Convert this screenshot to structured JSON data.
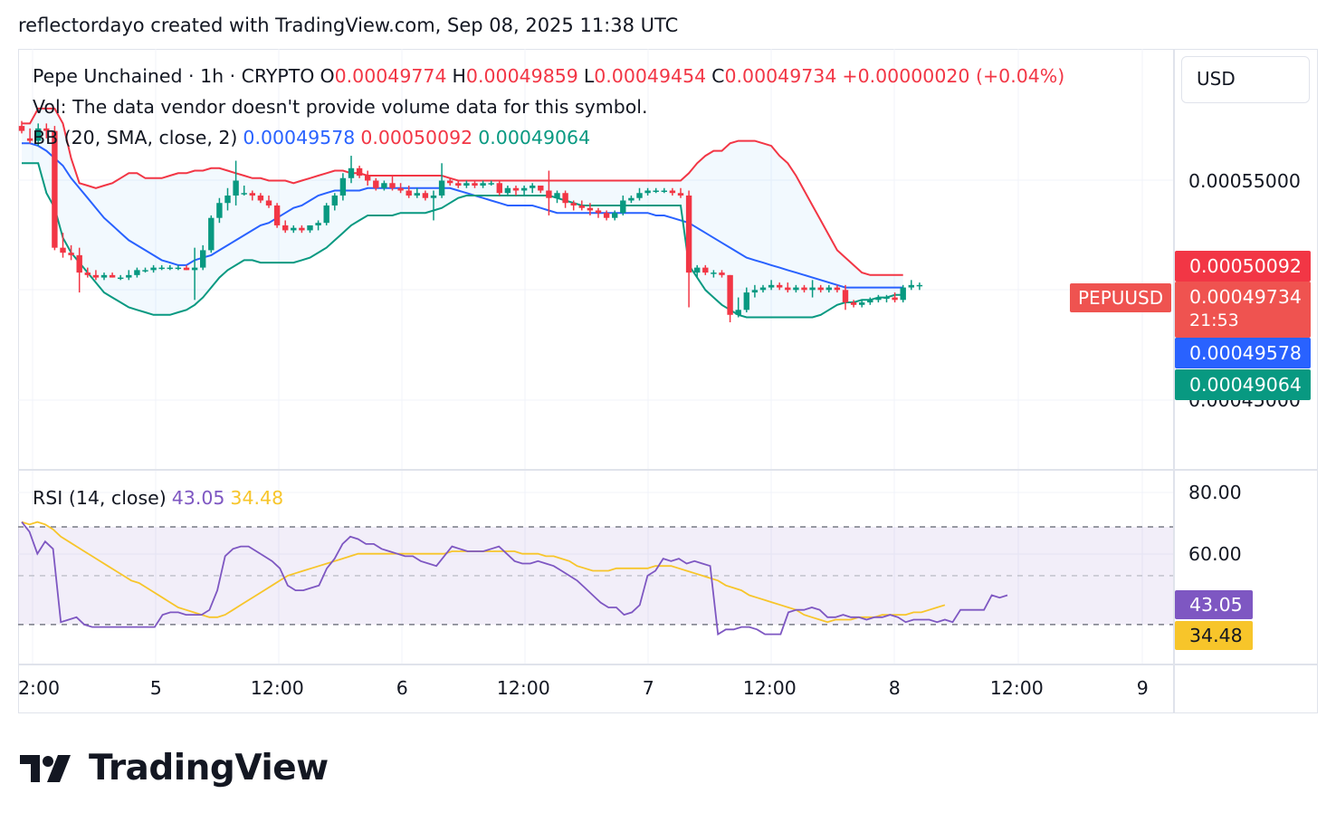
{
  "header": {
    "text": "reflectordayo created with TradingView.com, Sep 08, 2025 11:38 UTC"
  },
  "legend": {
    "symbol": "Pepe Unchained · 1h · CRYPTO",
    "o_label": "O",
    "o": "0.00049774",
    "h_label": "H",
    "h": "0.00049859",
    "l_label": "L",
    "l": "0.00049454",
    "c_label": "C",
    "c": "0.00049734",
    "change": "+0.00000020 (+0.04%)",
    "vol": "Vol: The data vendor doesn't provide volume data for this symbol.",
    "bb_label": "BB (20, SMA, close, 2)",
    "bb_basis": "0.00049578",
    "bb_upper": "0.00050092",
    "bb_lower": "0.00049064",
    "rsi_label": "RSI (14, close)",
    "rsi": "43.05",
    "rsi_ma": "34.48"
  },
  "currency": "USD",
  "symbol_tag": "PEPUUSD",
  "price_axis": {
    "labels": [
      "0.00055000",
      "0.00045000"
    ],
    "tag_upper": "0.00050092",
    "tag_close": "0.00049734",
    "tag_countdown": "21:53",
    "tag_basis": "0.00049578",
    "tag_lower": "0.00049064"
  },
  "rsi_axis": {
    "labels": [
      "80.00",
      "60.00"
    ],
    "tag_rsi": "43.05",
    "tag_ma": "34.48"
  },
  "time_axis": [
    "2:00",
    "5",
    "12:00",
    "6",
    "12:00",
    "7",
    "12:00",
    "8",
    "12:00",
    "9"
  ],
  "colors": {
    "up": "#089981",
    "down": "#f23645",
    "bb_basis": "#2962ff",
    "bb_upper": "#f23645",
    "bb_lower": "#089981",
    "rsi": "#7e57c2",
    "rsi_ma": "#f7c52a"
  },
  "logo": {
    "text": "TradingView"
  },
  "chart_data": {
    "type": "candlestick",
    "ylim": [
      0.000423,
      0.000592
    ],
    "candles": [
      [
        0.000561,
        0.000563,
        0.000558,
        0.000559
      ],
      [
        0.000556,
        0.00056,
        0.000554,
        0.000555
      ],
      [
        0.000555,
        0.000562,
        0.000553,
        0.00056
      ],
      [
        0.00056,
        0.000562,
        0.000556,
        0.000559
      ],
      [
        0.000559,
        0.000561,
        0.000511,
        0.000512
      ],
      [
        0.000512,
        0.000518,
        0.000508,
        0.00051
      ],
      [
        0.00051,
        0.000513,
        0.000507,
        0.000509
      ],
      [
        0.000509,
        0.000512,
        0.000494,
        0.000502
      ],
      [
        0.000502,
        0.000504,
        0.0005,
        0.000501
      ],
      [
        0.000501,
        0.000503,
        0.000499,
        0.0005
      ],
      [
        0.0005,
        0.000502,
        0.000499,
        0.000501
      ],
      [
        0.000501,
        0.000502,
        0.0005,
        0.0005
      ],
      [
        0.0005,
        0.000501,
        0.000499,
        0.0005
      ],
      [
        0.0005,
        0.000503,
        0.000499,
        0.000501
      ],
      [
        0.000501,
        0.000504,
        0.0005,
        0.000503
      ],
      [
        0.000503,
        0.000504,
        0.000502,
        0.000503
      ],
      [
        0.000503,
        0.000505,
        0.000502,
        0.000504
      ],
      [
        0.000504,
        0.000505,
        0.000503,
        0.000504
      ],
      [
        0.000504,
        0.000505,
        0.000503,
        0.000504
      ],
      [
        0.000504,
        0.000505,
        0.000503,
        0.000504
      ],
      [
        0.000504,
        0.000505,
        0.000503,
        0.000503
      ],
      [
        0.000503,
        0.000512,
        0.000491,
        0.000504
      ],
      [
        0.000504,
        0.000513,
        0.000503,
        0.000511
      ],
      [
        0.000511,
        0.000525,
        0.00051,
        0.000524
      ],
      [
        0.000524,
        0.000532,
        0.000522,
        0.00053
      ],
      [
        0.00053,
        0.000536,
        0.000527,
        0.000533
      ],
      [
        0.000533,
        0.000547,
        0.000529,
        0.000539
      ],
      [
        0.000534,
        0.000537,
        0.000533,
        0.000534
      ],
      [
        0.000534,
        0.000535,
        0.000531,
        0.000533
      ],
      [
        0.000533,
        0.000534,
        0.00053,
        0.000531
      ],
      [
        0.000531,
        0.000533,
        0.000528,
        0.000529
      ],
      [
        0.000529,
        0.00053,
        0.00052,
        0.000521
      ],
      [
        0.000521,
        0.000523,
        0.000518,
        0.000519
      ],
      [
        0.000519,
        0.000521,
        0.000518,
        0.00052
      ],
      [
        0.00052,
        0.000521,
        0.000518,
        0.000519
      ],
      [
        0.000519,
        0.000521,
        0.000518,
        0.000521
      ],
      [
        0.000521,
        0.000523,
        0.000519,
        0.000522
      ],
      [
        0.000522,
        0.00053,
        0.000521,
        0.000529
      ],
      [
        0.000529,
        0.000534,
        0.000527,
        0.000533
      ],
      [
        0.000533,
        0.000542,
        0.000531,
        0.00054
      ],
      [
        0.00054,
        0.000549,
        0.000538,
        0.000544
      ],
      [
        0.000544,
        0.000545,
        0.00054,
        0.000541
      ],
      [
        0.000541,
        0.000543,
        0.000537,
        0.000539
      ],
      [
        0.000539,
        0.00054,
        0.000535,
        0.000536
      ],
      [
        0.000536,
        0.000539,
        0.000535,
        0.000538
      ],
      [
        0.000538,
        0.000541,
        0.000535,
        0.000536
      ],
      [
        0.000536,
        0.000538,
        0.000534,
        0.000535
      ],
      [
        0.000535,
        0.000537,
        0.000532,
        0.000533
      ],
      [
        0.000533,
        0.000536,
        0.000532,
        0.000534
      ],
      [
        0.000534,
        0.000535,
        0.000531,
        0.000532
      ],
      [
        0.000532,
        0.000535,
        0.000523,
        0.000533
      ],
      [
        0.000533,
        0.000546,
        0.000532,
        0.000539
      ],
      [
        0.000539,
        0.00054,
        0.000537,
        0.000538
      ],
      [
        0.000538,
        0.000539,
        0.000536,
        0.000537
      ],
      [
        0.000537,
        0.000539,
        0.000536,
        0.000538
      ],
      [
        0.000538,
        0.000539,
        0.000536,
        0.000537
      ],
      [
        0.000537,
        0.000539,
        0.000536,
        0.000538
      ],
      [
        0.000538,
        0.000539,
        0.000537,
        0.000538
      ],
      [
        0.000538,
        0.000539,
        0.000533,
        0.000534
      ],
      [
        0.000534,
        0.000537,
        0.000533,
        0.000536
      ],
      [
        0.000536,
        0.000537,
        0.000533,
        0.000535
      ],
      [
        0.000535,
        0.000537,
        0.000533,
        0.000536
      ],
      [
        0.000536,
        0.000538,
        0.000534,
        0.000537
      ],
      [
        0.000537,
        0.000537,
        0.000534,
        0.000535
      ],
      [
        0.000535,
        0.000543,
        0.000525,
        0.000532
      ],
      [
        0.000532,
        0.000535,
        0.00053,
        0.000534
      ],
      [
        0.000534,
        0.000535,
        0.000528,
        0.00053
      ],
      [
        0.00053,
        0.000531,
        0.000527,
        0.000529
      ],
      [
        0.000529,
        0.000531,
        0.000527,
        0.000528
      ],
      [
        0.000528,
        0.00053,
        0.000525,
        0.000527
      ],
      [
        0.000527,
        0.000528,
        0.000524,
        0.000526
      ],
      [
        0.000526,
        0.000527,
        0.000523,
        0.000524
      ],
      [
        0.000524,
        0.000527,
        0.000523,
        0.000526
      ],
      [
        0.000526,
        0.000533,
        0.000525,
        0.000531
      ],
      [
        0.000531,
        0.000533,
        0.00053,
        0.000532
      ],
      [
        0.000532,
        0.000536,
        0.000531,
        0.000534
      ],
      [
        0.000534,
        0.000536,
        0.000533,
        0.000535
      ],
      [
        0.000535,
        0.000536,
        0.000534,
        0.000535
      ],
      [
        0.000535,
        0.000536,
        0.000534,
        0.000535
      ],
      [
        0.000535,
        0.000536,
        0.000533,
        0.000534
      ],
      [
        0.000534,
        0.000536,
        0.000532,
        0.000533
      ],
      [
        0.000533,
        0.000535,
        0.000488,
        0.000502
      ],
      [
        0.000502,
        0.000505,
        0.0005,
        0.000504
      ],
      [
        0.000504,
        0.000505,
        0.000501,
        0.000502
      ],
      [
        0.000502,
        0.000503,
        0.0005,
        0.000502
      ],
      [
        0.000502,
        0.000503,
        0.0005,
        0.000501
      ],
      [
        0.000501,
        0.000501,
        0.000482,
        0.000485
      ],
      [
        0.000485,
        0.000492,
        0.000484,
        0.000487
      ],
      [
        0.000487,
        0.000496,
        0.000486,
        0.000494
      ],
      [
        0.000494,
        0.000497,
        0.000492,
        0.000495
      ],
      [
        0.000495,
        0.000497,
        0.000494,
        0.000496
      ],
      [
        0.000496,
        0.000499,
        0.000495,
        0.000497
      ],
      [
        0.000497,
        0.000498,
        0.000495,
        0.000496
      ],
      [
        0.000496,
        0.000498,
        0.000494,
        0.000495
      ],
      [
        0.000495,
        0.000497,
        0.000494,
        0.000496
      ],
      [
        0.000496,
        0.000497,
        0.000494,
        0.000495
      ],
      [
        0.000495,
        0.000499,
        0.000492,
        0.000496
      ],
      [
        0.000496,
        0.000497,
        0.000494,
        0.000495
      ],
      [
        0.000495,
        0.000497,
        0.000494,
        0.000496
      ],
      [
        0.000496,
        0.000497,
        0.000494,
        0.000495
      ],
      [
        0.000495,
        0.000497,
        0.000487,
        0.00049
      ],
      [
        0.00049,
        0.000491,
        0.000488,
        0.000489
      ],
      [
        0.000489,
        0.000491,
        0.000488,
        0.00049
      ],
      [
        0.00049,
        0.000492,
        0.000489,
        0.000491
      ],
      [
        0.000491,
        0.000493,
        0.00049,
        0.000492
      ],
      [
        0.000492,
        0.000493,
        0.00049,
        0.000492
      ],
      [
        0.000492,
        0.000494,
        0.00049,
        0.000491
      ],
      [
        0.000491,
        0.000497,
        0.00049,
        0.000496
      ],
      [
        0.000496,
        0.000499,
        0.000495,
        0.000497
      ],
      [
        0.000497,
        0.000498,
        0.000495,
        0.000497
      ]
    ],
    "bb_upper": [
      0.000562,
      0.000562,
      0.000568,
      0.000568,
      0.000568,
      0.000562,
      0.000548,
      0.000538,
      0.000537,
      0.000536,
      0.000537,
      0.000538,
      0.00054,
      0.000542,
      0.000542,
      0.00054,
      0.00054,
      0.00054,
      0.000541,
      0.000542,
      0.000542,
      0.000543,
      0.000543,
      0.000544,
      0.000544,
      0.000543,
      0.000542,
      0.000541,
      0.00054,
      0.00054,
      0.000539,
      0.000539,
      0.000539,
      0.000538,
      0.000539,
      0.00054,
      0.000541,
      0.000542,
      0.000543,
      0.000543,
      0.000542,
      0.000542,
      0.000541,
      0.000541,
      0.000541,
      0.000541,
      0.000541,
      0.000541,
      0.000541,
      0.000541,
      0.000541,
      0.000541,
      0.00054,
      0.000539,
      0.000539,
      0.000539,
      0.000539,
      0.000539,
      0.000539,
      0.000539,
      0.000539,
      0.000539,
      0.000539,
      0.000539,
      0.000539,
      0.000539,
      0.000539,
      0.000539,
      0.000539,
      0.000539,
      0.000539,
      0.000539,
      0.000539,
      0.000539,
      0.000539,
      0.000539,
      0.000539,
      0.000539,
      0.000539,
      0.000539,
      0.000539,
      0.000542,
      0.000546,
      0.000549,
      0.000551,
      0.000551,
      0.000554,
      0.000555,
      0.000555,
      0.000555,
      0.000554,
      0.000553,
      0.000549,
      0.000546,
      0.000541,
      0.000535,
      0.000529,
      0.000523,
      0.000517,
      0.000511,
      0.000508,
      0.000505,
      0.000502,
      0.000501,
      0.000501,
      0.000501,
      0.000501,
      0.000501
    ],
    "bb_basis": [
      0.000554,
      0.000554,
      0.000553,
      0.000551,
      0.000548,
      0.000545,
      0.00054,
      0.000536,
      0.000532,
      0.000528,
      0.000524,
      0.000521,
      0.000518,
      0.000515,
      0.000513,
      0.000511,
      0.000509,
      0.000507,
      0.000506,
      0.000505,
      0.000505,
      0.000507,
      0.000508,
      0.000509,
      0.000511,
      0.000513,
      0.000515,
      0.000517,
      0.000519,
      0.000521,
      0.000522,
      0.000524,
      0.000526,
      0.000528,
      0.000529,
      0.000531,
      0.000533,
      0.000534,
      0.000535,
      0.000535,
      0.000535,
      0.000535,
      0.000536,
      0.000536,
      0.000536,
      0.000536,
      0.000536,
      0.000536,
      0.000536,
      0.000536,
      0.000536,
      0.000536,
      0.000536,
      0.000535,
      0.000534,
      0.000533,
      0.000532,
      0.000531,
      0.00053,
      0.000529,
      0.000529,
      0.000529,
      0.000529,
      0.000528,
      0.000527,
      0.000526,
      0.000526,
      0.000526,
      0.000526,
      0.000526,
      0.000526,
      0.000526,
      0.000526,
      0.000526,
      0.000526,
      0.000526,
      0.000526,
      0.000525,
      0.000525,
      0.000524,
      0.000523,
      0.000522,
      0.00052,
      0.000518,
      0.000516,
      0.000514,
      0.000512,
      0.00051,
      0.000508,
      0.000507,
      0.000506,
      0.000505,
      0.000504,
      0.000503,
      0.000502,
      0.000501,
      0.0005,
      0.000499,
      0.000498,
      0.000497,
      0.000496,
      0.000496,
      0.000496,
      0.000496,
      0.000496,
      0.000496,
      0.000496,
      0.000496
    ],
    "bb_lower": [
      0.000546,
      0.000546,
      0.000546,
      0.000534,
      0.000528,
      0.000516,
      0.00051,
      0.000506,
      0.000502,
      0.000498,
      0.000494,
      0.000492,
      0.00049,
      0.000488,
      0.000487,
      0.000486,
      0.000485,
      0.000485,
      0.000485,
      0.000486,
      0.000487,
      0.000489,
      0.000492,
      0.000496,
      0.0005,
      0.000503,
      0.000505,
      0.000507,
      0.000507,
      0.000506,
      0.000506,
      0.000506,
      0.000506,
      0.000506,
      0.000507,
      0.000508,
      0.00051,
      0.000512,
      0.000515,
      0.000518,
      0.000521,
      0.000523,
      0.000525,
      0.000525,
      0.000525,
      0.000525,
      0.000526,
      0.000526,
      0.000526,
      0.000526,
      0.000527,
      0.000528,
      0.00053,
      0.000532,
      0.000533,
      0.000533,
      0.000533,
      0.000533,
      0.000533,
      0.000533,
      0.000533,
      0.000533,
      0.000533,
      0.000533,
      0.000533,
      0.000532,
      0.000531,
      0.00053,
      0.000529,
      0.000529,
      0.000529,
      0.000529,
      0.000529,
      0.000529,
      0.000529,
      0.000529,
      0.000529,
      0.000529,
      0.000529,
      0.000529,
      0.000529,
      0.000505,
      0.0005,
      0.000495,
      0.000492,
      0.000489,
      0.000487,
      0.000485,
      0.000484,
      0.000484,
      0.000484,
      0.000484,
      0.000484,
      0.000484,
      0.000484,
      0.000484,
      0.000484,
      0.000485,
      0.000487,
      0.000489,
      0.00049,
      0.00049,
      0.000491,
      0.000491,
      0.000492,
      0.000492,
      0.000493,
      0.000493
    ],
    "rsi_ylim": [
      14,
      93
    ],
    "rsi": [
      72,
      68,
      59,
      64,
      61,
      31,
      32,
      33,
      30,
      29,
      29,
      29,
      29,
      29,
      29,
      29,
      29,
      29,
      34,
      35,
      35,
      34,
      34,
      34,
      36,
      44,
      58,
      61,
      62,
      62,
      60,
      58,
      56,
      53,
      46,
      44,
      44,
      45,
      46,
      53,
      57,
      63,
      66,
      65,
      63,
      63,
      61,
      60,
      59,
      58,
      58,
      56,
      55,
      54,
      58,
      62,
      61,
      60,
      60,
      60,
      61,
      62,
      59,
      56,
      55,
      55,
      56,
      55,
      54,
      52,
      50,
      48,
      45,
      42,
      39,
      37,
      37,
      34,
      35,
      38,
      50,
      52,
      57,
      56,
      57,
      55,
      56,
      55,
      54,
      26,
      28,
      28,
      29,
      29,
      28,
      26,
      26,
      26,
      35,
      36,
      36,
      37,
      36,
      33,
      33,
      34,
      33,
      33,
      32,
      33,
      33,
      34,
      33,
      31,
      32,
      32,
      32,
      31,
      32,
      31,
      36,
      36,
      36,
      36,
      42,
      41,
      42
    ],
    "rsi_ma": [
      72,
      71,
      72,
      71,
      69,
      66,
      64,
      62,
      60,
      58,
      56,
      54,
      52,
      50,
      48,
      47,
      45,
      43,
      41,
      39,
      37,
      36,
      35,
      34,
      33,
      33,
      34,
      36,
      38,
      40,
      42,
      44,
      46,
      48,
      50,
      51,
      52,
      53,
      54,
      55,
      56,
      57,
      58,
      59,
      59,
      59,
      59,
      59,
      59,
      59,
      59,
      59,
      59,
      59,
      59,
      60,
      60,
      60,
      60,
      60,
      60,
      60,
      60,
      60,
      59,
      59,
      59,
      58,
      58,
      57,
      56,
      54,
      53,
      52,
      52,
      52,
      53,
      53,
      53,
      53,
      53,
      54,
      54,
      54,
      53,
      52,
      51,
      50,
      49,
      48,
      46,
      45,
      44,
      42,
      41,
      40,
      39,
      38,
      37,
      36,
      34,
      33,
      32,
      31,
      32,
      32,
      32,
      33,
      33,
      33,
      34,
      34,
      34,
      34,
      35,
      35,
      36,
      37,
      38
    ],
    "rsi_bands": {
      "upper": 70,
      "middle": 50,
      "lower": 30
    }
  }
}
